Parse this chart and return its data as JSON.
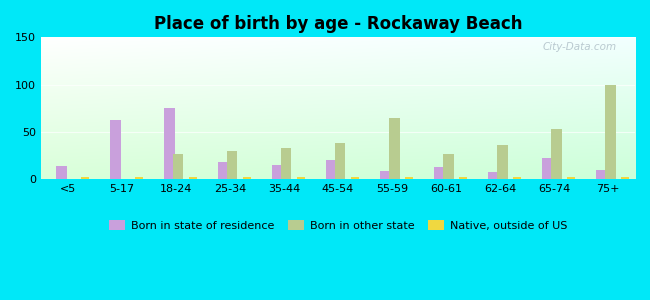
{
  "title": "Place of birth by age - Rockaway Beach",
  "categories": [
    "<5",
    "5-17",
    "18-24",
    "25-34",
    "35-44",
    "45-54",
    "55-59",
    "60-61",
    "62-64",
    "65-74",
    "75+"
  ],
  "born_in_state": [
    14,
    62,
    75,
    18,
    15,
    20,
    8,
    13,
    7,
    22,
    10
  ],
  "born_other_state": [
    0,
    0,
    26,
    30,
    33,
    38,
    65,
    26,
    36,
    53,
    100
  ],
  "native_outside_us": [
    2,
    2,
    2,
    2,
    2,
    2,
    2,
    2,
    2,
    2,
    2
  ],
  "color_state": "#c9a0dc",
  "color_other": "#b8cc90",
  "color_native": "#f0d840",
  "ylim": [
    0,
    150
  ],
  "yticks": [
    0,
    50,
    100,
    150
  ],
  "outer_bg": "#00e8f8",
  "legend_labels": [
    "Born in state of residence",
    "Born in other state",
    "Native, outside of US"
  ],
  "watermark": "City-Data.com"
}
